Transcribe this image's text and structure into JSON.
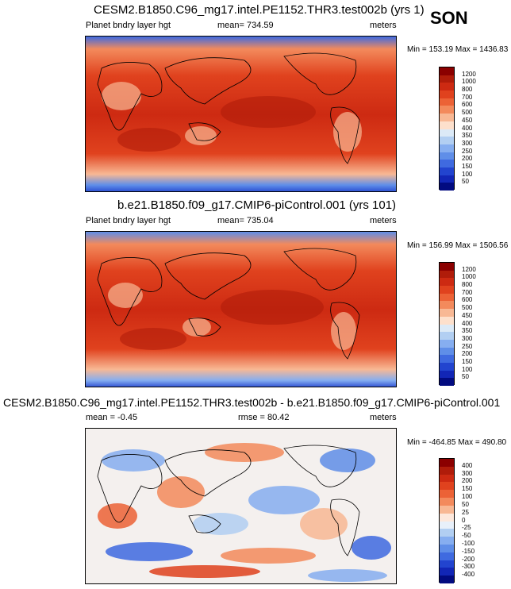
{
  "season": "SON",
  "panels": [
    {
      "title": "CESM2.B1850.C96_mg17.intel.PE1152.THR3.test002b (yrs 1)",
      "variable": "Planet bndry layer hgt",
      "stat1": "mean= 734.59",
      "stat2": "",
      "units": "meters",
      "minmax": "Min = 153.19 Max = 1436.83",
      "levels": [
        "1200",
        "1000",
        "800",
        "700",
        "600",
        "500",
        "450",
        "400",
        "350",
        "300",
        "250",
        "200",
        "150",
        "100",
        "50"
      ],
      "colors": [
        "#8b0000",
        "#b01c0a",
        "#cd2a12",
        "#e0421e",
        "#ec6236",
        "#f38a5c",
        "#f8b894",
        "#fde0cc",
        "#dceaf7",
        "#b2cff2",
        "#86aef0",
        "#5f8ee8",
        "#3f6ae0",
        "#2244cf",
        "#1226b6",
        "#020b80"
      ]
    },
    {
      "title": "b.e21.B1850.f09_g17.CMIP6-piControl.001 (yrs 101)",
      "variable": "Planet bndry layer hgt",
      "stat1": "mean= 735.04",
      "stat2": "",
      "units": "meters",
      "minmax": "Min = 156.99 Max = 1506.56",
      "levels": [
        "1200",
        "1000",
        "800",
        "700",
        "600",
        "500",
        "450",
        "400",
        "350",
        "300",
        "250",
        "200",
        "150",
        "100",
        "50"
      ],
      "colors": [
        "#8b0000",
        "#b01c0a",
        "#cd2a12",
        "#e0421e",
        "#ec6236",
        "#f38a5c",
        "#f8b894",
        "#fde0cc",
        "#dceaf7",
        "#b2cff2",
        "#86aef0",
        "#5f8ee8",
        "#3f6ae0",
        "#2244cf",
        "#1226b6",
        "#020b80"
      ]
    },
    {
      "title": "CESM2.B1850.C96_mg17.intel.PE1152.THR3.test002b - b.e21.B1850.f09_g17.CMIP6-piControl.001",
      "variable": "",
      "stat1": "mean =  -0.45",
      "stat2": "rmse =  80.42",
      "units": "meters",
      "minmax": "Min = -464.85 Max = 490.80",
      "levels": [
        "400",
        "300",
        "200",
        "150",
        "100",
        "50",
        "25",
        "0",
        "-25",
        "-50",
        "-100",
        "-150",
        "-200",
        "-300",
        "-400"
      ],
      "colors": [
        "#8b0000",
        "#b01c0a",
        "#cd2a12",
        "#e0421e",
        "#ec6236",
        "#f38a5c",
        "#f8b894",
        "#fde8dc",
        "#e8f0fa",
        "#b2cff2",
        "#86aef0",
        "#5f8ee8",
        "#3f6ae0",
        "#2244cf",
        "#1226b6",
        "#020b80"
      ]
    }
  ],
  "chart_data": [
    {
      "type": "heatmap",
      "title": "CESM2.B1850.C96_mg17.intel.PE1152.THR3.test002b (yrs 1)",
      "variable": "Planet bndry layer hgt",
      "units": "meters",
      "mean": 734.59,
      "min": 153.19,
      "max": 1436.83,
      "contour_levels": [
        50,
        100,
        150,
        200,
        250,
        300,
        350,
        400,
        450,
        500,
        600,
        700,
        800,
        1000,
        1200
      ]
    },
    {
      "type": "heatmap",
      "title": "b.e21.B1850.f09_g17.CMIP6-piControl.001 (yrs 101)",
      "variable": "Planet bndry layer hgt",
      "units": "meters",
      "mean": 735.04,
      "min": 156.99,
      "max": 1506.56,
      "contour_levels": [
        50,
        100,
        150,
        200,
        250,
        300,
        350,
        400,
        450,
        500,
        600,
        700,
        800,
        1000,
        1200
      ]
    },
    {
      "type": "heatmap",
      "title": "CESM2.B1850.C96_mg17.intel.PE1152.THR3.test002b - b.e21.B1850.f09_g17.CMIP6-piControl.001",
      "units": "meters",
      "mean": -0.45,
      "rmse": 80.42,
      "min": -464.85,
      "max": 490.8,
      "contour_levels": [
        -400,
        -300,
        -200,
        -150,
        -100,
        -50,
        -25,
        0,
        25,
        50,
        100,
        150,
        200,
        300,
        400
      ]
    }
  ]
}
